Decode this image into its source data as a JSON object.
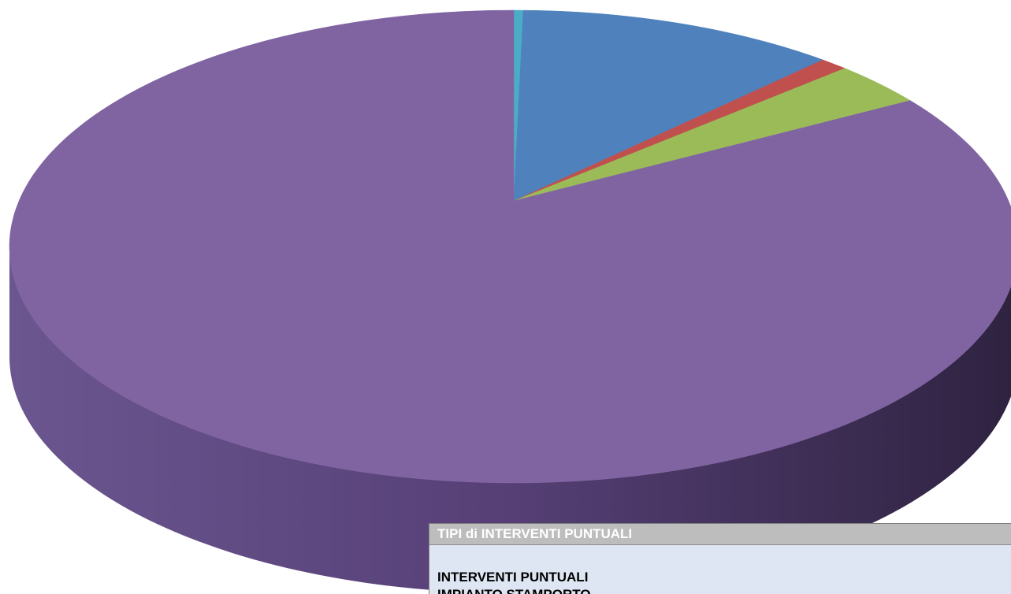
{
  "chart_data": {
    "type": "pie",
    "title": "",
    "labels": [
      "",
      "",
      "",
      "",
      ""
    ],
    "values": [
      0.3,
      10.2,
      0.9,
      3.0,
      85.6
    ],
    "colors": [
      "#4bacc6",
      "#4f81bd",
      "#c0504d",
      "#9bbb59",
      "#8064a2"
    ],
    "style": "3d-exploded-none"
  },
  "table": {
    "header": "TIPI di INTERVENTI PUNTUALI",
    "rows": [
      "INTERVENTI PUNTUALI",
      "IMPIANTO STAMPORTO"
    ]
  }
}
